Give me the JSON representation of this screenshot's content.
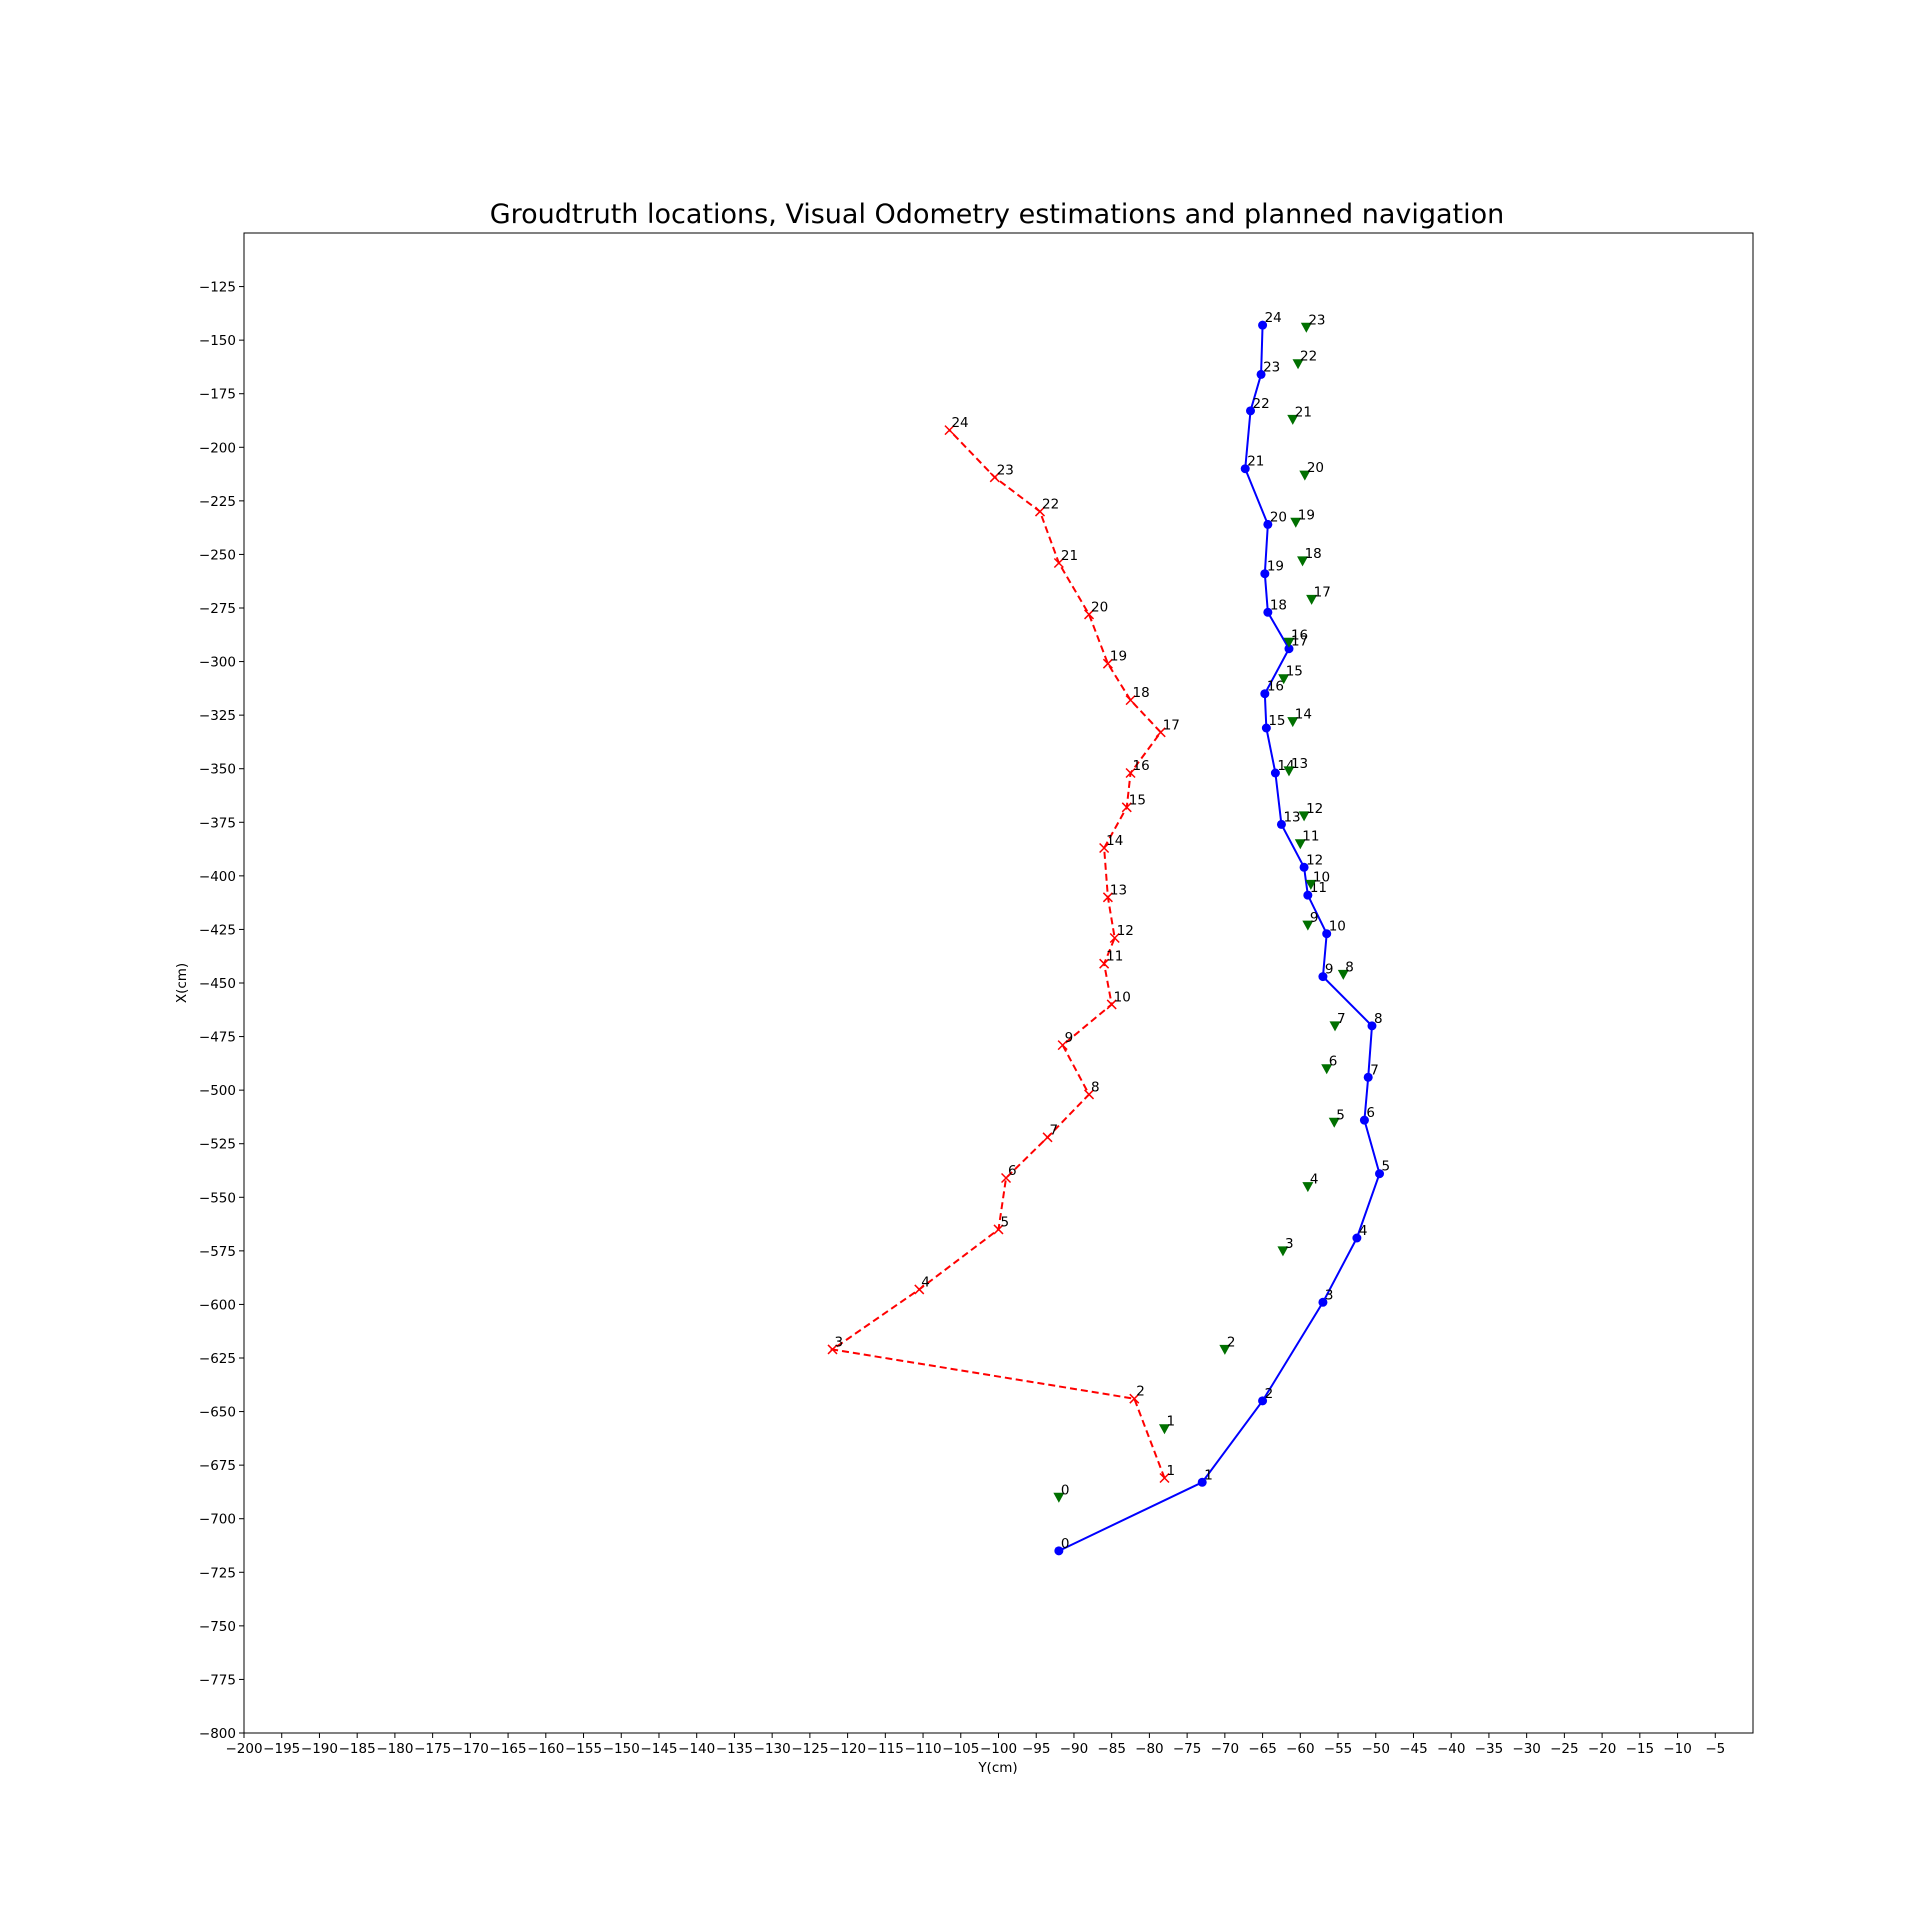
{
  "chart_data": {
    "type": "line",
    "title": "Groudtruth locations, Visual Odometry estimations and planned navigation",
    "xlabel": "Y(cm)",
    "ylabel": "X(cm)",
    "xlim": [
      -200,
      0
    ],
    "ylim": [
      -800,
      -100
    ],
    "grid": false,
    "legend": "none",
    "x_ticks": [
      -200,
      -195,
      -190,
      -185,
      -180,
      -175,
      -170,
      -165,
      -160,
      -155,
      -150,
      -145,
      -140,
      -135,
      -130,
      -125,
      -120,
      -115,
      -110,
      -105,
      -100,
      -95,
      -90,
      -85,
      -80,
      -75,
      -70,
      -65,
      -60,
      -55,
      -50,
      -45,
      -40,
      -35,
      -30,
      -25,
      -20,
      -15,
      -10,
      -5
    ],
    "x_tick_labels": [
      "−200",
      "−195",
      "−190",
      "−185",
      "−180",
      "−175",
      "−170",
      "−165",
      "−160",
      "−155",
      "−150",
      "−145",
      "−140",
      "−135",
      "−130",
      "−125",
      "−120",
      "−115",
      "−110",
      "−105",
      "−100",
      "−95",
      "−90",
      "−85",
      "−80",
      "−75",
      "−70",
      "−65",
      "−60",
      "−55",
      "−50",
      "−45",
      "−40",
      "−35",
      "−30",
      "−25",
      "−20",
      "−15",
      "−10",
      "−5"
    ],
    "y_ticks": [
      -125,
      -150,
      -175,
      -200,
      -225,
      -250,
      -275,
      -300,
      -325,
      -350,
      -375,
      -400,
      -425,
      -450,
      -475,
      -500,
      -525,
      -550,
      -575,
      -600,
      -625,
      -650,
      -675,
      -700,
      -725,
      -750,
      -775,
      -800
    ],
    "y_tick_labels": [
      "−125",
      "−150",
      "−175",
      "−200",
      "−225",
      "−250",
      "−275",
      "−300",
      "−325",
      "−350",
      "−375",
      "−400",
      "−425",
      "−450",
      "−475",
      "−500",
      "−525",
      "−550",
      "−575",
      "−600",
      "−625",
      "−650",
      "−675",
      "−700",
      "−725",
      "−750",
      "−775",
      "−800"
    ],
    "series": [
      {
        "color": "#0000ff",
        "line": "solid",
        "marker": "circle",
        "labels": [
          "0",
          "1",
          "2",
          "3",
          "4",
          "5",
          "6",
          "7",
          "8",
          "9",
          "10",
          "11",
          "12",
          "13",
          "14",
          "15",
          "16",
          "17",
          "18",
          "19",
          "20",
          "21",
          "22",
          "23",
          "24"
        ],
        "x": [
          -92,
          -73,
          -65,
          -57,
          -52.5,
          -49.5,
          -51.5,
          -51,
          -50.5,
          -57,
          -56.5,
          -59,
          -59.5,
          -62.5,
          -63.3,
          -64.5,
          -64.7,
          -61.5,
          -64.3,
          -64.7,
          -64.3,
          -67.3,
          -66.6,
          -65.2,
          -65
        ],
        "y": [
          -715,
          -683,
          -645,
          -599,
          -569,
          -539,
          -514,
          -494,
          -470,
          -447,
          -427,
          -409,
          -396,
          -376,
          -352,
          -331,
          -315,
          -294,
          -277,
          -259,
          -236,
          -210,
          -183,
          -166,
          -143
        ]
      },
      {
        "color": "#ff0000",
        "line": "dashed",
        "marker": "x",
        "labels": [
          "1",
          "2",
          "3",
          "4",
          "5",
          "6",
          "7",
          "8",
          "9",
          "10",
          "11",
          "12",
          "13",
          "14",
          "15",
          "16",
          "17",
          "18",
          "19",
          "20",
          "21",
          "22",
          "23",
          "24"
        ],
        "x": [
          -78,
          -82,
          -122,
          -110.5,
          -100,
          -99,
          -93.5,
          -88,
          -91.5,
          -85,
          -86,
          -84.6,
          -85.5,
          -86,
          -83,
          -82.5,
          -78.5,
          -82.5,
          -85.5,
          -88,
          -92,
          -94.5,
          -100.5,
          -106.5
        ],
        "y": [
          -681,
          -644,
          -621,
          -593,
          -565,
          -541,
          -522,
          -502,
          -479,
          -460,
          -441,
          -429,
          -410,
          -387,
          -368,
          -352,
          -333,
          -318,
          -301,
          -278,
          -254,
          -230,
          -214,
          -192
        ]
      },
      {
        "color": "#007000",
        "line": "none",
        "marker": "triangle-down",
        "labels": [
          "0",
          "1",
          "2",
          "3",
          "4",
          "5",
          "6",
          "7",
          "8",
          "9",
          "10",
          "11",
          "12",
          "13",
          "14",
          "15",
          "16",
          "17",
          "18",
          "19",
          "20",
          "21",
          "22",
          "23"
        ],
        "x": [
          -92,
          -78,
          -70,
          -62.3,
          -59,
          -55.5,
          -56.5,
          -55.4,
          -54.3,
          -59,
          -58.6,
          -60,
          -59.5,
          -61.5,
          -61,
          -62.2,
          -61.5,
          -58.5,
          -59.7,
          -60.6,
          -59.4,
          -61,
          -60.3,
          -59.2
        ],
        "y": [
          -690,
          -658,
          -621,
          -575,
          -545,
          -515,
          -490,
          -470,
          -446,
          -423,
          -404,
          -385,
          -372,
          -351,
          -328,
          -308,
          -291,
          -271,
          -253,
          -235,
          -213,
          -187,
          -161,
          -144
        ]
      }
    ]
  }
}
